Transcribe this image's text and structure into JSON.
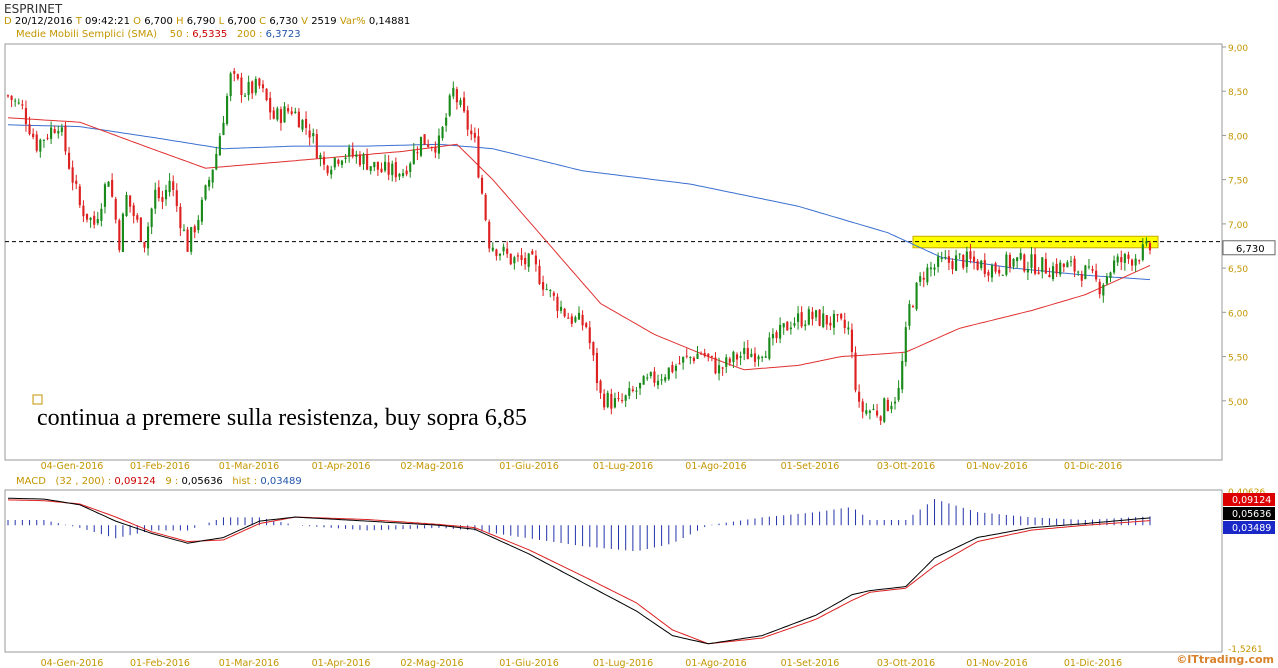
{
  "header": {
    "title": "ESPRINET",
    "d_label": "D",
    "d_val": "20/12/2016",
    "t_label": "T",
    "t_val": "09:42:21",
    "o_label": "O",
    "o_val": "6,700",
    "h_label": "H",
    "h_val": "6,790",
    "l_label": "L",
    "l_val": "6,700",
    "c_label": "C",
    "c_val": "6,730",
    "v_label": "V",
    "v_val": "2519",
    "var_label": "Var%",
    "var_val": "0,14881",
    "sma_label": "Medie Mobili Semplici (SMA)",
    "sma50_label": "50 :",
    "sma50_val": "6,5335",
    "sma200_label": "200 :",
    "sma200_val": "6,3723"
  },
  "macd_header": {
    "label": "MACD",
    "params": "(32 , 200) :",
    "macd_val": "0,09124",
    "signal_label": "9 :",
    "signal_val": "0,05636",
    "hist_label": "hist :",
    "hist_val": "0,03489"
  },
  "annotation": "continua a premere sulla resistenza, buy sopra 6,85",
  "watermark": "©ITtrading.com",
  "colors": {
    "up": "#1a8a1a",
    "down": "#dd2020",
    "sma50": "#e03030",
    "sma200": "#3b6fd0",
    "highlight": "#ffff00",
    "macd": "#000000",
    "signal": "#dd2020",
    "hist": "#2233aa"
  },
  "chart_data": [
    {
      "type": "candlestick",
      "title": "ESPRINET",
      "x_labels": [
        "04-Gen-2016",
        "01-Feb-2016",
        "01-Mar-2016",
        "01-Apr-2016",
        "02-Mag-2016",
        "01-Giu-2016",
        "01-Lug-2016",
        "01-Ago-2016",
        "01-Set-2016",
        "03-Ott-2016",
        "01-Nov-2016",
        "01-Dic-2016"
      ],
      "y_ticks": [
        "9,00",
        "8,50",
        "8,00",
        "7,50",
        "7,00",
        "6,50",
        "6,00",
        "5,50",
        "5,00"
      ],
      "ylim": [
        4.5,
        9.0
      ],
      "last_price": "6,730",
      "price_anchors": [
        [
          0,
          8.45
        ],
        [
          4,
          8.3
        ],
        [
          8,
          7.9
        ],
        [
          14,
          8.15
        ],
        [
          20,
          7.2
        ],
        [
          24,
          7.0
        ],
        [
          28,
          7.55
        ],
        [
          31,
          6.8
        ],
        [
          33,
          7.3
        ],
        [
          38,
          6.8
        ],
        [
          41,
          7.35
        ],
        [
          43,
          7.25
        ],
        [
          45,
          7.5
        ],
        [
          50,
          6.75
        ],
        [
          54,
          7.2
        ],
        [
          58,
          7.8
        ],
        [
          62,
          8.65
        ],
        [
          66,
          8.5
        ],
        [
          70,
          8.55
        ],
        [
          74,
          8.2
        ],
        [
          79,
          8.3
        ],
        [
          84,
          8.05
        ],
        [
          88,
          7.65
        ],
        [
          93,
          7.8
        ],
        [
          98,
          7.75
        ],
        [
          104,
          7.6
        ],
        [
          110,
          7.6
        ],
        [
          115,
          7.95
        ],
        [
          120,
          7.9
        ],
        [
          124,
          8.5
        ],
        [
          130,
          7.9
        ],
        [
          134,
          6.8
        ],
        [
          140,
          6.6
        ],
        [
          146,
          6.55
        ],
        [
          151,
          6.2
        ],
        [
          156,
          5.95
        ],
        [
          161,
          5.85
        ],
        [
          165,
          5.05
        ],
        [
          170,
          4.95
        ],
        [
          176,
          5.15
        ],
        [
          182,
          5.3
        ],
        [
          188,
          5.45
        ],
        [
          193,
          5.55
        ],
        [
          198,
          5.35
        ],
        [
          203,
          5.5
        ],
        [
          208,
          5.55
        ],
        [
          213,
          5.65
        ],
        [
          218,
          5.9
        ],
        [
          223,
          5.95
        ],
        [
          229,
          5.9
        ],
        [
          234,
          5.8
        ],
        [
          237,
          4.9
        ],
        [
          243,
          4.88
        ],
        [
          248,
          5.1
        ],
        [
          251,
          6.05
        ],
        [
          255,
          6.45
        ],
        [
          260,
          6.55
        ],
        [
          265,
          6.6
        ],
        [
          270,
          6.55
        ],
        [
          275,
          6.5
        ],
        [
          280,
          6.58
        ],
        [
          285,
          6.55
        ],
        [
          290,
          6.5
        ],
        [
          295,
          6.52
        ],
        [
          300,
          6.45
        ],
        [
          304,
          6.3
        ],
        [
          308,
          6.55
        ],
        [
          313,
          6.62
        ],
        [
          318,
          6.72
        ]
      ],
      "sma_anchors": {
        "sma50": [
          [
            0,
            8.2
          ],
          [
            20,
            8.15
          ],
          [
            40,
            7.85
          ],
          [
            55,
            7.63
          ],
          [
            70,
            7.68
          ],
          [
            90,
            7.75
          ],
          [
            110,
            7.82
          ],
          [
            125,
            7.9
          ],
          [
            135,
            7.5
          ],
          [
            150,
            6.8
          ],
          [
            165,
            6.1
          ],
          [
            180,
            5.75
          ],
          [
            195,
            5.5
          ],
          [
            205,
            5.35
          ],
          [
            220,
            5.4
          ],
          [
            232,
            5.5
          ],
          [
            240,
            5.52
          ],
          [
            250,
            5.55
          ],
          [
            265,
            5.82
          ],
          [
            285,
            6.02
          ],
          [
            300,
            6.2
          ],
          [
            318,
            6.53
          ]
        ],
        "sma200": [
          [
            0,
            8.12
          ],
          [
            20,
            8.1
          ],
          [
            40,
            7.98
          ],
          [
            60,
            7.85
          ],
          [
            80,
            7.88
          ],
          [
            100,
            7.88
          ],
          [
            120,
            7.9
          ],
          [
            135,
            7.85
          ],
          [
            160,
            7.6
          ],
          [
            190,
            7.45
          ],
          [
            220,
            7.2
          ],
          [
            245,
            6.9
          ],
          [
            260,
            6.62
          ],
          [
            280,
            6.5
          ],
          [
            300,
            6.42
          ],
          [
            318,
            6.37
          ]
        ]
      },
      "resistance": 6.8,
      "highlight_zone": [
        6.73,
        6.86
      ]
    },
    {
      "type": "macd",
      "title": "MACD",
      "y_ticks_top": "0,40626",
      "y_ticks_bottom": "-1,5261",
      "ylim": [
        -1.5261,
        0.40626
      ],
      "macd_anchors": [
        [
          0,
          0.33
        ],
        [
          10,
          0.32
        ],
        [
          20,
          0.25
        ],
        [
          30,
          0.05
        ],
        [
          40,
          -0.1
        ],
        [
          50,
          -0.22
        ],
        [
          60,
          -0.15
        ],
        [
          70,
          0.05
        ],
        [
          80,
          0.1
        ],
        [
          100,
          0.05
        ],
        [
          120,
          0.0
        ],
        [
          130,
          -0.05
        ],
        [
          145,
          -0.35
        ],
        [
          160,
          -0.7
        ],
        [
          175,
          -1.05
        ],
        [
          185,
          -1.35
        ],
        [
          195,
          -1.45
        ],
        [
          210,
          -1.35
        ],
        [
          225,
          -1.1
        ],
        [
          235,
          -0.85
        ],
        [
          240,
          -0.8
        ],
        [
          250,
          -0.75
        ],
        [
          258,
          -0.4
        ],
        [
          270,
          -0.15
        ],
        [
          285,
          -0.03
        ],
        [
          300,
          0.02
        ],
        [
          318,
          0.09
        ]
      ],
      "signal_anchors": [
        [
          0,
          0.31
        ],
        [
          10,
          0.3
        ],
        [
          20,
          0.26
        ],
        [
          30,
          0.1
        ],
        [
          40,
          -0.08
        ],
        [
          50,
          -0.2
        ],
        [
          60,
          -0.18
        ],
        [
          70,
          0.02
        ],
        [
          80,
          0.1
        ],
        [
          100,
          0.07
        ],
        [
          120,
          0.01
        ],
        [
          130,
          -0.03
        ],
        [
          145,
          -0.3
        ],
        [
          160,
          -0.62
        ],
        [
          175,
          -0.95
        ],
        [
          185,
          -1.28
        ],
        [
          195,
          -1.45
        ],
        [
          210,
          -1.38
        ],
        [
          225,
          -1.15
        ],
        [
          235,
          -0.92
        ],
        [
          240,
          -0.82
        ],
        [
          250,
          -0.77
        ],
        [
          258,
          -0.5
        ],
        [
          270,
          -0.2
        ],
        [
          285,
          -0.06
        ],
        [
          300,
          0.0
        ],
        [
          318,
          0.056
        ]
      ],
      "hist_last": 0.03489
    }
  ]
}
